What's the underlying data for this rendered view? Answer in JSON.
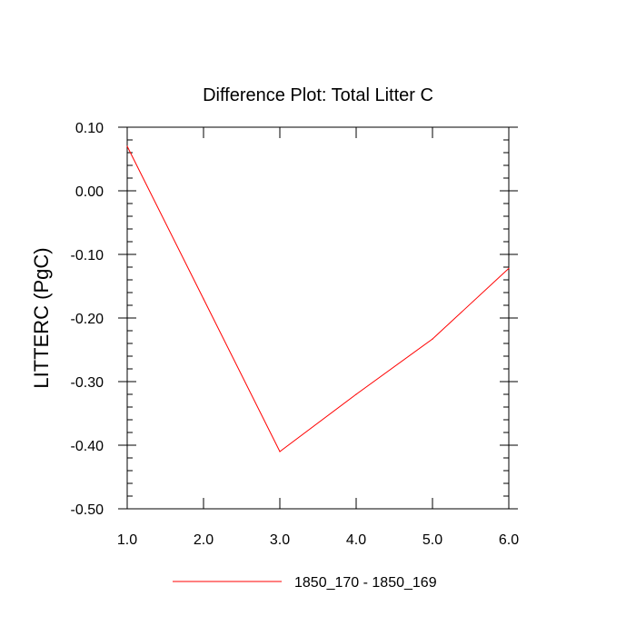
{
  "chart_data": {
    "type": "line",
    "title": "Difference Plot: Total Litter C",
    "xlabel": "",
    "ylabel": "LITTERC  (PgC)",
    "xlim": [
      1.0,
      6.0
    ],
    "ylim": [
      -0.5,
      0.1
    ],
    "x_ticks": [
      1.0,
      2.0,
      3.0,
      4.0,
      5.0,
      6.0
    ],
    "x_tick_labels": [
      "1.0",
      "2.0",
      "3.0",
      "4.0",
      "5.0",
      "6.0"
    ],
    "y_ticks": [
      0.1,
      0.0,
      -0.1,
      -0.2,
      -0.3,
      -0.4,
      -0.5
    ],
    "y_tick_labels": [
      "0.10",
      "0.00",
      "-0.10",
      "-0.20",
      "-0.30",
      "-0.40",
      "-0.50"
    ],
    "grid": false,
    "legend_position": "bottom",
    "series": [
      {
        "name": "1850_170 - 1850_169",
        "color": "#ff0000",
        "x": [
          1.0,
          2.0,
          3.0,
          4.0,
          5.0,
          6.0
        ],
        "y": [
          0.07,
          -0.17,
          -0.41,
          -0.32,
          -0.233,
          -0.122
        ]
      }
    ]
  }
}
